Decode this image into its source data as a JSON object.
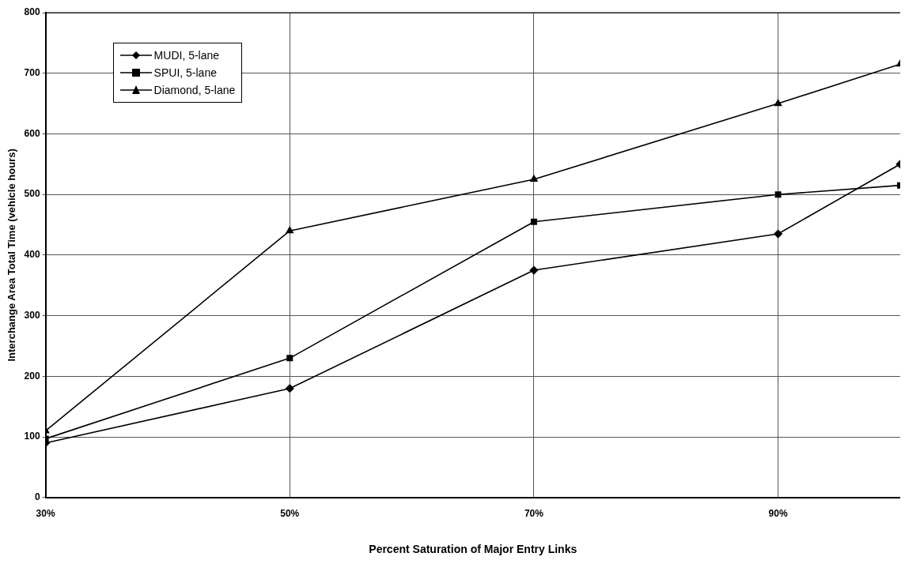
{
  "chart_data": {
    "type": "line",
    "xlabel": "Percent Saturation of Major Entry Links",
    "ylabel": "Interchange Area Total Time (vehicle hours)",
    "x": [
      30,
      50,
      70,
      90,
      100
    ],
    "series": [
      {
        "name": "MUDI, 5-lane",
        "color": "#000000",
        "marker": "diamond",
        "values": [
          90,
          180,
          375,
          435,
          550
        ]
      },
      {
        "name": "SPUI, 5-lane",
        "color": "#000000",
        "marker": "square",
        "values": [
          97,
          230,
          455,
          500,
          515
        ]
      },
      {
        "name": "Diamond, 5-lane",
        "color": "#000000",
        "marker": "triangle",
        "values": [
          110,
          440,
          525,
          650,
          715
        ]
      }
    ],
    "xlim": [
      30,
      100
    ],
    "xticks": [
      {
        "value": 30,
        "label": "30%"
      },
      {
        "value": 50,
        "label": "50%"
      },
      {
        "value": 70,
        "label": "70%"
      },
      {
        "value": 90,
        "label": "90%"
      }
    ],
    "ylim": [
      0,
      800
    ],
    "yticks": [
      0,
      100,
      200,
      300,
      400,
      500,
      600,
      700,
      800
    ],
    "grid": true,
    "legend": "top left"
  }
}
